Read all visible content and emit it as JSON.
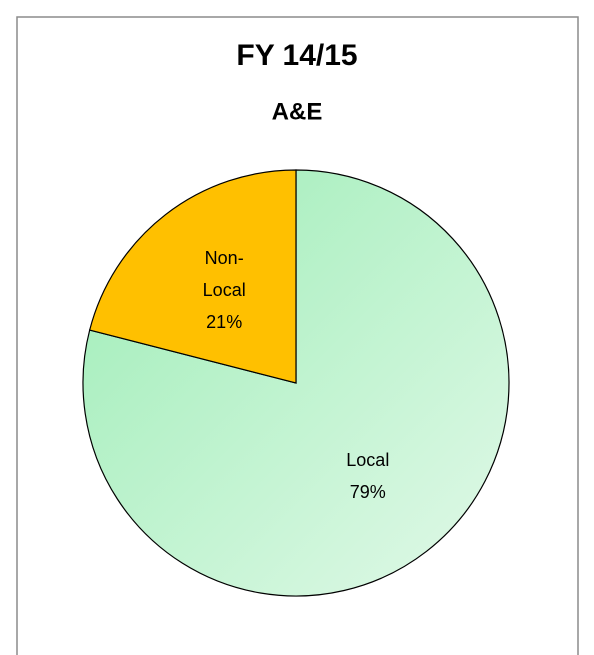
{
  "chart_data": {
    "type": "pie",
    "title": "FY 14/15",
    "subtitle": "A&E",
    "categories": [
      "Local",
      "Non-Local"
    ],
    "values": [
      79,
      21
    ],
    "value_labels": [
      "79%",
      "21%"
    ],
    "colors": [
      "#bff3cf",
      "#ffc000"
    ]
  }
}
